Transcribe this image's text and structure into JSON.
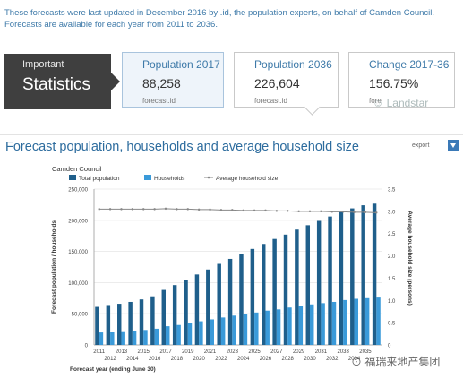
{
  "intro_text": "These forecasts were last updated in December 2016 by .id, the population experts, on behalf of Camden Council. Forecasts are available for each year from 2011 to 2036.",
  "stats_box": {
    "small": "Important",
    "big": "Statistics"
  },
  "cards": [
    {
      "label": "Population 2017",
      "value": "88,258",
      "source": "forecast.id"
    },
    {
      "label": "Population 2036",
      "value": "226,604",
      "source": "forecast.id"
    },
    {
      "label": "Change 2017-36",
      "value": "156.75%",
      "source": "fore"
    }
  ],
  "watermark_top": "Landstar",
  "chart": {
    "title": "Forecast population, households and average household size",
    "export_label": "export",
    "council": "Camden Council"
  },
  "watermark_bottom": "福瑞来地产集团",
  "colors": {
    "total_population": "#1f5f8b",
    "households": "#3a9ad9",
    "avg_line": "#888888",
    "title": "#2d6c9e"
  },
  "chart_data": {
    "type": "bar",
    "legend": [
      "Total population",
      "Households",
      "Average household size"
    ],
    "x": [
      2011,
      2012,
      2013,
      2014,
      2015,
      2016,
      2017,
      2018,
      2019,
      2020,
      2021,
      2022,
      2023,
      2024,
      2025,
      2026,
      2027,
      2028,
      2029,
      2030,
      2031,
      2032,
      2033,
      2034,
      2035,
      2036
    ],
    "x_tick_labels_top": [
      "2011",
      "2013",
      "2015",
      "2017",
      "2019",
      "2021",
      "2023",
      "2025",
      "2027",
      "2029",
      "2031",
      "2033",
      "2035"
    ],
    "x_tick_labels_bottom": [
      "2012",
      "2014",
      "2016",
      "2018",
      "2020",
      "2022",
      "2024",
      "2026",
      "2028",
      "2030",
      "2032",
      "2034"
    ],
    "series": [
      {
        "name": "Total population",
        "axis": "left",
        "values": [
          61000,
          64000,
          66000,
          69000,
          73000,
          78000,
          88258,
          96000,
          104000,
          113000,
          121000,
          130000,
          138000,
          146000,
          154000,
          162000,
          170000,
          177000,
          185000,
          192000,
          199000,
          206000,
          213000,
          219000,
          224000,
          226604
        ]
      },
      {
        "name": "Households",
        "axis": "left",
        "values": [
          20000,
          21000,
          22000,
          23000,
          24000,
          26000,
          30000,
          32000,
          35000,
          38000,
          41000,
          44000,
          47000,
          49000,
          52000,
          55000,
          57000,
          60000,
          62000,
          65000,
          67000,
          69000,
          72000,
          74000,
          75000,
          76000
        ]
      },
      {
        "name": "Average household size",
        "axis": "right",
        "values": [
          3.05,
          3.05,
          3.05,
          3.05,
          3.05,
          3.05,
          3.06,
          3.05,
          3.05,
          3.04,
          3.04,
          3.03,
          3.03,
          3.02,
          3.02,
          3.02,
          3.01,
          3.01,
          3.0,
          3.0,
          3.0,
          2.99,
          2.99,
          2.98,
          2.98,
          2.97
        ]
      }
    ],
    "ylabel": "Forecast population / households",
    "y2label": "Average household size (persons)",
    "xlabel": "Forecast year (ending June 30)",
    "ylim": [
      0,
      250000
    ],
    "y_ticks": [
      "0",
      "50,000",
      "100,000",
      "150,000",
      "200,000",
      "250,000"
    ],
    "y2lim": [
      0,
      3.5
    ],
    "y2_ticks": [
      "0",
      "0.5",
      "1.0",
      "1.5",
      "2.0",
      "2.5",
      "3.0",
      "3.5"
    ]
  }
}
